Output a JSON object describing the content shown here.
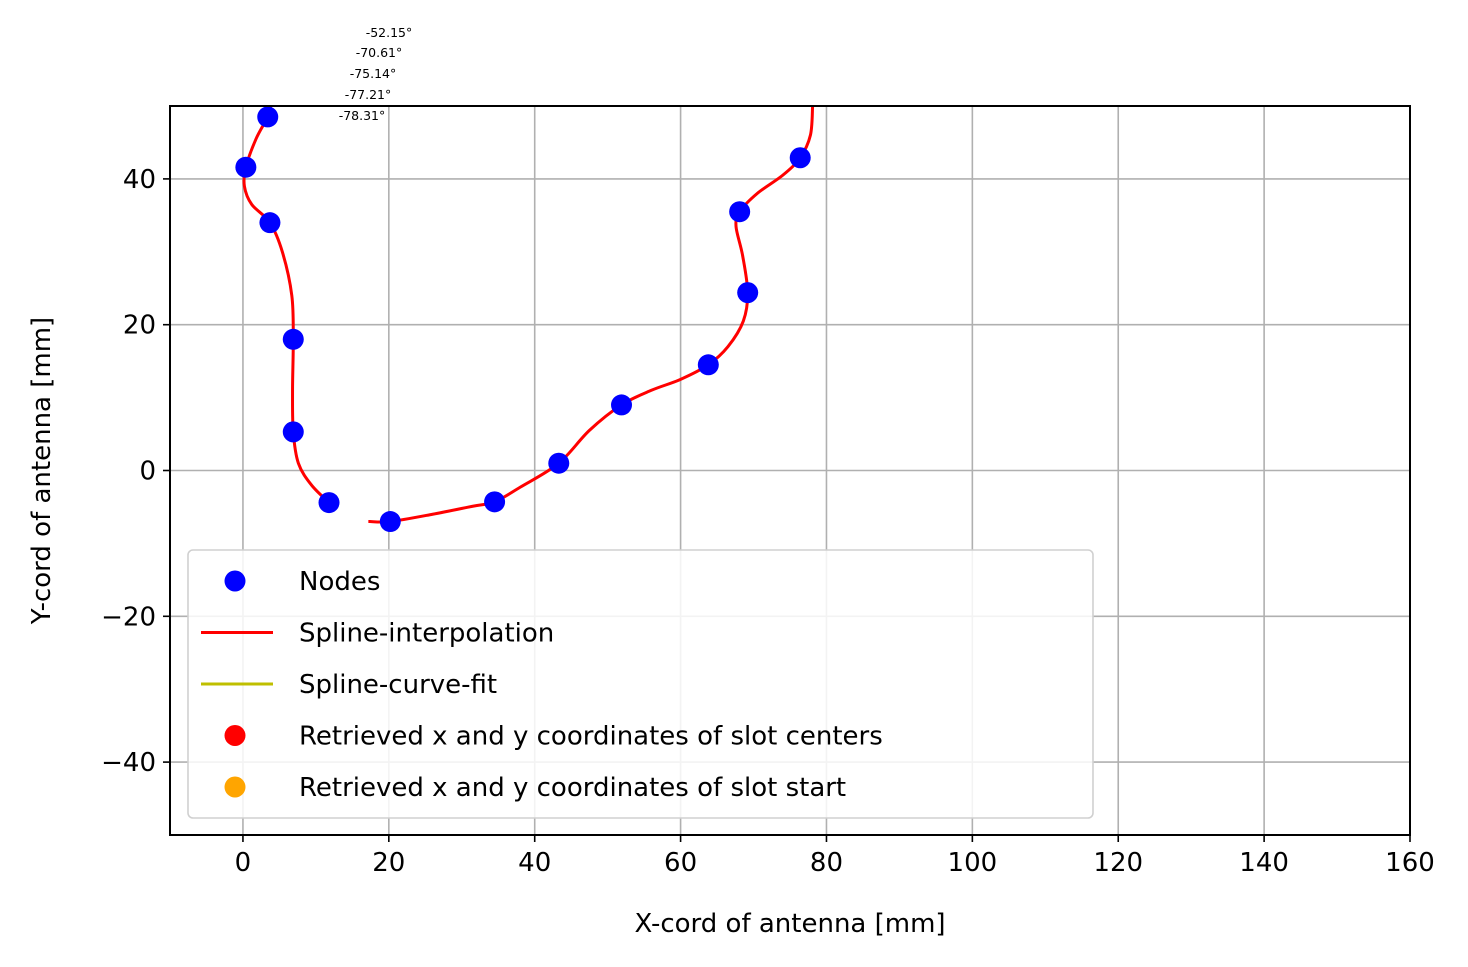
{
  "chart_data": {
    "type": "line",
    "title": "",
    "xlabel": "X-cord of antenna [mm]",
    "ylabel": "Y-cord of antenna [mm]",
    "xlim": [
      -10,
      160
    ],
    "ylim": [
      -50,
      50
    ],
    "xticks": [
      0,
      20,
      40,
      60,
      80,
      100,
      120,
      140,
      160
    ],
    "yticks": [
      -40,
      -20,
      0,
      20,
      40
    ],
    "grid": true,
    "legend_position": "lower-left",
    "annotations": [
      "-52.15°",
      "-70.61°",
      "-75.14°",
      "-77.21°",
      "-78.31°"
    ],
    "series": [
      {
        "name": "Nodes",
        "kind": "scatter",
        "color": "#0000ff",
        "x": [
          3.4,
          0.4,
          3.7,
          6.9,
          6.9,
          11.8,
          20.2,
          34.5,
          43.3,
          51.9,
          63.8,
          69.2,
          68.1,
          76.4
        ],
        "y": [
          48.5,
          41.6,
          34.0,
          18.0,
          5.3,
          -4.4,
          -7.0,
          -4.3,
          1.0,
          9.0,
          14.5,
          24.4,
          35.5,
          42.9
        ]
      },
      {
        "name": "Spline-interpolation",
        "kind": "line",
        "color": "#ff0000",
        "segments": [
          {
            "x": [
              3.8,
              3.4,
              1.8,
              0.4,
              0.2,
              1.2,
              3.7,
              5.4,
              6.7,
              6.9,
              6.8,
              6.9,
              7.6,
              9.4,
              11.8
            ],
            "y": [
              50.0,
              48.5,
              45.5,
              41.6,
              39.0,
              36.5,
              34.0,
              30.0,
              24.0,
              18.0,
              11.0,
              5.3,
              1.0,
              -2.0,
              -4.4
            ]
          },
          {
            "x": [
              17.4,
              20.2,
              26.0,
              31.5,
              34.5,
              38.0,
              43.3,
              47.5,
              51.9,
              56.0,
              60.0,
              63.8,
              66.5,
              68.6,
              69.2,
              68.5,
              67.6,
              68.1,
              70.5,
              74.0,
              76.4,
              77.8,
              78.1
            ],
            "y": [
              -7.0,
              -7.0,
              -6.0,
              -4.9,
              -4.3,
              -2.3,
              1.0,
              5.5,
              9.0,
              11.0,
              12.5,
              14.5,
              17.0,
              20.5,
              24.4,
              29.5,
              33.5,
              35.5,
              38.0,
              40.5,
              42.9,
              46.0,
              50.0
            ]
          }
        ]
      },
      {
        "name": "Spline-curve-fit",
        "kind": "line",
        "color": "#bfbf00",
        "x": [],
        "y": []
      },
      {
        "name": "Retrieved x and y coordinates of slot centers",
        "kind": "scatter",
        "color": "#ff0000",
        "x": [],
        "y": []
      },
      {
        "name": "Retrieved x and y coordinates of slot start",
        "kind": "scatter",
        "color": "#ffa500",
        "x": [],
        "y": []
      }
    ]
  }
}
